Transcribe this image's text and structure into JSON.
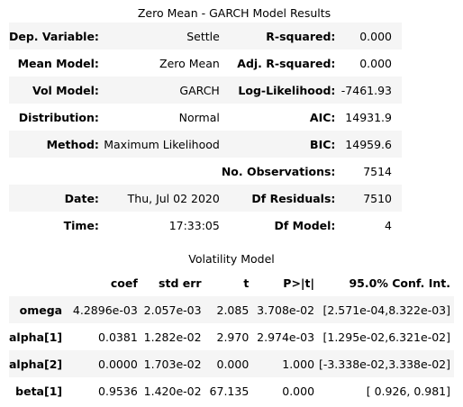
{
  "summary_title": "Zero Mean - GARCH Model Results",
  "summary_rows": [
    {
      "k1": "Dep. Variable:",
      "v1": "Settle",
      "k2": "R-squared:",
      "v2": "0.000"
    },
    {
      "k1": "Mean Model:",
      "v1": "Zero Mean",
      "k2": "Adj. R-squared:",
      "v2": "0.000"
    },
    {
      "k1": "Vol Model:",
      "v1": "GARCH",
      "k2": "Log-Likelihood:",
      "v2": "-7461.93"
    },
    {
      "k1": "Distribution:",
      "v1": "Normal",
      "k2": "AIC:",
      "v2": "14931.9"
    },
    {
      "k1": "Method:",
      "v1": "Maximum Likelihood",
      "k2": "BIC:",
      "v2": "14959.6"
    },
    {
      "k1": "",
      "v1": "",
      "k2": "No. Observations:",
      "v2": "7514"
    },
    {
      "k1": "Date:",
      "v1": "Thu, Jul 02 2020",
      "k2": "Df Residuals:",
      "v2": "7510"
    },
    {
      "k1": "Time:",
      "v1": "17:33:05",
      "k2": "Df Model:",
      "v2": "4"
    }
  ],
  "vol_title": "Volatility Model",
  "vol_headers": [
    "",
    "coef",
    "std err",
    "t",
    "P>|t|",
    "95.0% Conf. Int."
  ],
  "vol_rows": [
    [
      "omega",
      "4.2896e-03",
      "2.057e-03",
      "2.085",
      "3.708e-02",
      "[2.571e-04,8.322e-03]"
    ],
    [
      "alpha[1]",
      "0.0381",
      "1.282e-02",
      "2.970",
      "2.974e-03",
      "[1.295e-02,6.321e-02]"
    ],
    [
      "alpha[2]",
      "0.0000",
      "1.703e-02",
      "0.000",
      "1.000",
      "[-3.338e-02,3.338e-02]"
    ],
    [
      "beta[1]",
      "0.9536",
      "1.420e-02",
      "67.135",
      "0.000",
      "[ 0.926, 0.981]"
    ]
  ]
}
